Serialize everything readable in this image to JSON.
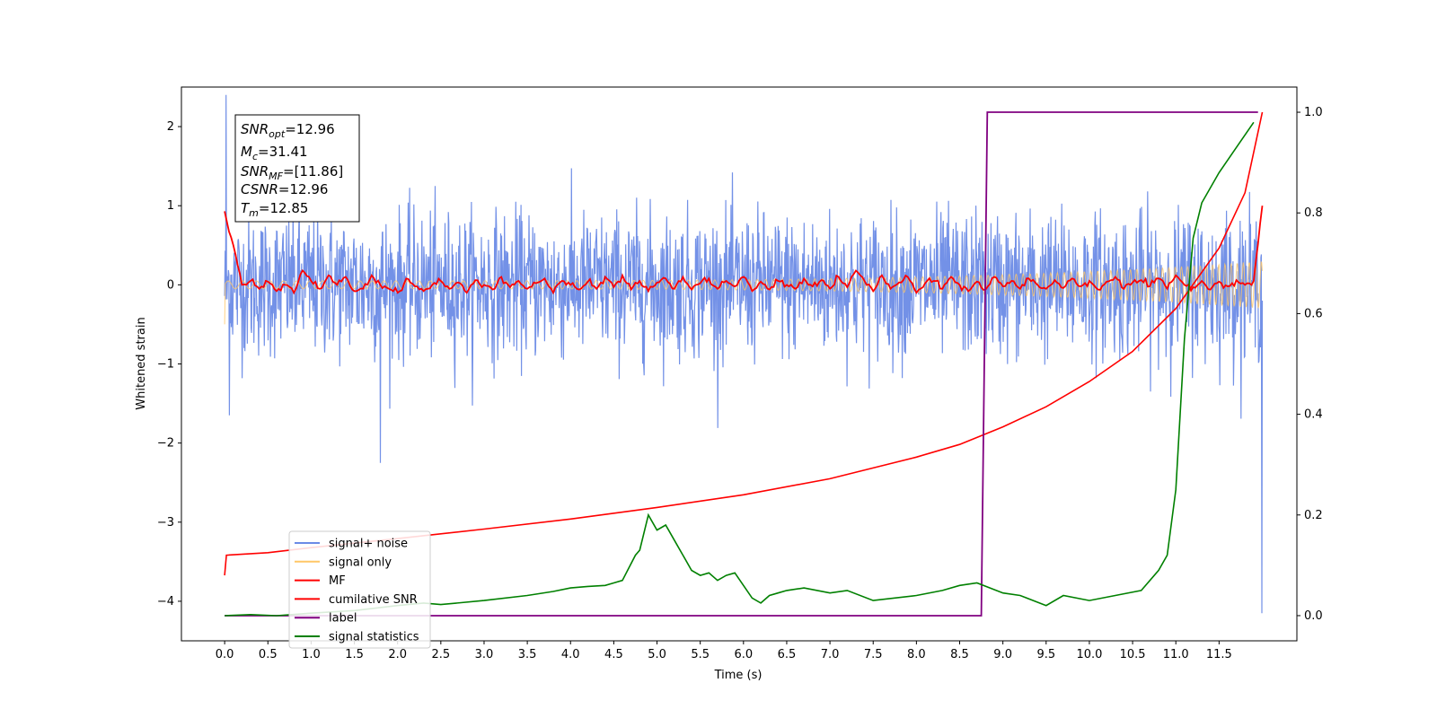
{
  "chart_data": {
    "type": "line",
    "xlabel": "Time (s)",
    "ylabel": "Whitened strain",
    "xlim": [
      -0.5,
      12.4
    ],
    "ylim": [
      -4.5,
      2.5
    ],
    "y2lim": [
      -0.05,
      1.05
    ],
    "x_ticks": [
      "0.0",
      "0.5",
      "1.0",
      "1.5",
      "2.0",
      "2.5",
      "3.0",
      "3.5",
      "4.0",
      "4.5",
      "5.0",
      "5.5",
      "6.0",
      "6.5",
      "7.0",
      "7.5",
      "8.0",
      "8.5",
      "9.0",
      "9.5",
      "10.0",
      "10.5",
      "11.0",
      "11.5"
    ],
    "y_ticks": [
      "2",
      "1",
      "0",
      "−1",
      "−2",
      "−3",
      "−4"
    ],
    "y2_ticks": [
      "1.0",
      "0.8",
      "0.6",
      "0.4",
      "0.2",
      "0.0"
    ],
    "info_box": {
      "snr_opt": {
        "var": "SNR",
        "sub": "opt",
        "value": "=12.96"
      },
      "mc": {
        "var": "M",
        "sub": "c",
        "value": "=31.41"
      },
      "snr_mf": {
        "var": "SNR",
        "sub": "MF",
        "value": "=[11.86]"
      },
      "csnr": {
        "var": "CSNR",
        "sub": "",
        "value": "=12.96"
      },
      "tm": {
        "var": "T",
        "sub": "m",
        "value": "=12.85"
      }
    },
    "legend": {
      "position": "lower-left",
      "entries": [
        {
          "label": "signal+ noise",
          "color": "#6b8be6"
        },
        {
          "label": "signal only",
          "color": "#ffc766"
        },
        {
          "label": "MF",
          "color": "#ff0000"
        },
        {
          "label": "cumilative SNR",
          "color": "#ff0000"
        },
        {
          "label": "label",
          "color": "#800080"
        },
        {
          "label": "signal statistics",
          "color": "#008000"
        }
      ]
    },
    "series": [
      {
        "name": "signal+ noise",
        "axis": "left",
        "color": "#6b8be6",
        "noise_std": 0.45,
        "range": [
          0,
          12.0
        ]
      },
      {
        "name": "signal only",
        "axis": "left",
        "color": "#ffc766",
        "chirp": "amplitude 0.05 rising to 0.3",
        "range": [
          0,
          12.0
        ]
      },
      {
        "name": "MF",
        "axis": "left",
        "color": "#ff0000",
        "x": [
          0.0,
          0.1,
          0.2,
          0.3,
          0.4,
          0.5,
          0.6,
          0.7,
          0.8,
          0.9,
          1.0,
          1.1,
          1.2,
          1.3,
          1.4,
          1.5,
          1.6,
          1.7,
          1.8,
          1.9,
          2.0,
          2.1,
          2.2,
          2.3,
          2.4,
          2.5,
          2.6,
          2.7,
          2.8,
          2.9,
          3.0,
          3.1,
          3.2,
          3.3,
          3.4,
          3.5,
          3.6,
          3.7,
          3.8,
          3.9,
          4.0,
          4.1,
          4.2,
          4.3,
          4.4,
          4.5,
          4.6,
          4.7,
          4.8,
          4.9,
          5.0,
          5.1,
          5.2,
          5.3,
          5.4,
          5.5,
          5.6,
          5.7,
          5.8,
          5.9,
          6.0,
          6.1,
          6.2,
          6.3,
          6.4,
          6.5,
          6.6,
          6.7,
          6.8,
          6.9,
          7.0,
          7.1,
          7.2,
          7.3,
          7.4,
          7.5,
          7.6,
          7.7,
          7.8,
          7.9,
          8.0,
          8.1,
          8.2,
          8.3,
          8.4,
          8.5,
          8.6,
          8.7,
          8.8,
          8.9,
          9.0,
          9.1,
          9.2,
          9.3,
          9.4,
          9.5,
          9.6,
          9.7,
          9.8,
          9.9,
          10.0,
          10.1,
          10.2,
          10.3,
          10.4,
          10.5,
          10.6,
          10.7,
          10.8,
          10.9,
          11.0,
          11.1,
          11.2,
          11.3,
          11.4,
          11.5,
          11.6,
          11.7,
          11.8,
          11.9,
          12.0
        ],
        "y": [
          0.93,
          0.5,
          0.0,
          0.05,
          -0.05,
          0.04,
          -0.08,
          0.0,
          -0.1,
          0.18,
          0.05,
          -0.05,
          0.12,
          0.0,
          0.1,
          -0.08,
          -0.05,
          0.12,
          0.0,
          -0.05,
          -0.1,
          0.08,
          -0.02,
          -0.08,
          0.0,
          0.05,
          -0.05,
          0.03,
          -0.1,
          0.06,
          0.0,
          -0.06,
          0.1,
          -0.03,
          0.05,
          -0.05,
          0.02,
          0.08,
          -0.1,
          0.05,
          0.0,
          -0.06,
          0.04,
          -0.05,
          0.1,
          -0.03,
          0.12,
          -0.06,
          0.05,
          -0.08,
          0.03,
          0.08,
          -0.05,
          0.1,
          -0.06,
          0.02,
          0.08,
          -0.05,
          0.05,
          -0.02,
          0.1,
          -0.08,
          0.04,
          -0.06,
          0.05,
          0.0,
          -0.05,
          0.08,
          -0.02,
          0.06,
          -0.05,
          0.1,
          -0.03,
          0.18,
          0.05,
          -0.08,
          0.12,
          -0.05,
          0.03,
          0.1,
          -0.1,
          0.02,
          0.05,
          -0.05,
          0.1,
          0.0,
          -0.08,
          0.04,
          -0.06,
          0.1,
          -0.02,
          0.05,
          -0.05,
          0.08,
          0.0,
          -0.05,
          0.06,
          -0.04,
          0.08,
          -0.02,
          0.05,
          -0.06,
          0.04,
          0.1,
          -0.05,
          0.03,
          0.06,
          -0.02,
          0.08,
          -0.05,
          0.12,
          0.0,
          -0.03,
          0.05,
          -0.06,
          0.04,
          -0.02,
          0.06,
          0.0,
          0.05,
          1.0
        ]
      },
      {
        "name": "cumilative SNR",
        "axis": "right",
        "color": "#ff0000",
        "x": [
          0.0,
          0.02,
          0.5,
          1.0,
          2.0,
          3.0,
          4.0,
          5.0,
          6.0,
          7.0,
          8.0,
          8.5,
          9.0,
          9.5,
          10.0,
          10.5,
          11.0,
          11.5,
          11.8,
          12.0
        ],
        "y": [
          0.08,
          0.12,
          0.125,
          0.135,
          0.153,
          0.172,
          0.192,
          0.215,
          0.24,
          0.272,
          0.315,
          0.34,
          0.375,
          0.415,
          0.465,
          0.525,
          0.61,
          0.73,
          0.84,
          1.0
        ]
      },
      {
        "name": "label",
        "axis": "right",
        "color": "#800080",
        "x": [
          0.0,
          8.75,
          8.82,
          11.95
        ],
        "y": [
          0.0,
          0.0,
          1.0,
          1.0
        ]
      },
      {
        "name": "signal statistics",
        "axis": "right",
        "color": "#008000",
        "x": [
          0.0,
          0.3,
          0.6,
          1.0,
          1.5,
          2.0,
          2.3,
          2.5,
          3.0,
          3.5,
          3.8,
          4.0,
          4.2,
          4.4,
          4.5,
          4.6,
          4.75,
          4.8,
          4.9,
          5.0,
          5.1,
          5.2,
          5.3,
          5.4,
          5.5,
          5.6,
          5.7,
          5.8,
          5.9,
          6.0,
          6.1,
          6.2,
          6.3,
          6.4,
          6.5,
          6.7,
          7.0,
          7.2,
          7.5,
          8.0,
          8.3,
          8.5,
          8.7,
          9.0,
          9.2,
          9.5,
          9.7,
          10.0,
          10.3,
          10.6,
          10.8,
          10.9,
          11.0,
          11.1,
          11.2,
          11.3,
          11.5,
          11.7,
          11.9
        ],
        "y": [
          0.0,
          0.002,
          0.0,
          0.005,
          0.01,
          0.02,
          0.025,
          0.022,
          0.03,
          0.04,
          0.048,
          0.055,
          0.058,
          0.06,
          0.065,
          0.07,
          0.12,
          0.13,
          0.2,
          0.17,
          0.18,
          0.15,
          0.12,
          0.09,
          0.08,
          0.085,
          0.07,
          0.08,
          0.085,
          0.06,
          0.035,
          0.025,
          0.04,
          0.045,
          0.05,
          0.055,
          0.045,
          0.05,
          0.03,
          0.04,
          0.05,
          0.06,
          0.065,
          0.045,
          0.04,
          0.02,
          0.04,
          0.03,
          0.04,
          0.05,
          0.09,
          0.12,
          0.25,
          0.55,
          0.75,
          0.82,
          0.88,
          0.93,
          0.98
        ]
      }
    ]
  }
}
